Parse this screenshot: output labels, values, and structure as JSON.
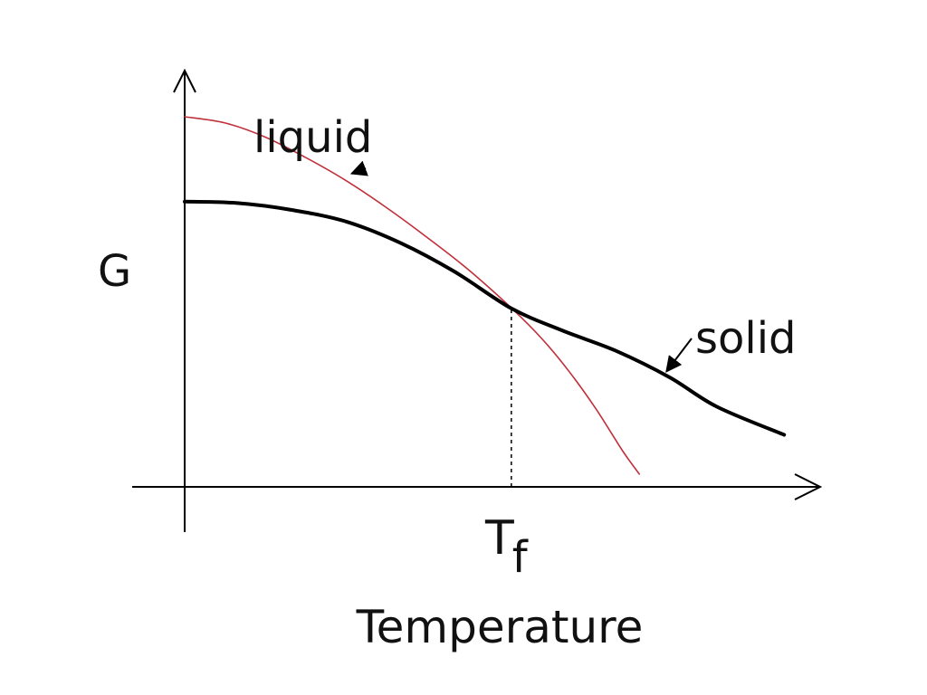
{
  "chart_data": {
    "type": "line",
    "title": "",
    "xlabel": "Temperature",
    "ylabel": "G",
    "xlim": [
      0,
      1
    ],
    "ylim": [
      0,
      1
    ],
    "grid": false,
    "legend": "none",
    "x_ticks": [
      {
        "label_main": "T",
        "label_sub": "f",
        "x": 0.485
      }
    ],
    "series": [
      {
        "name": "liquid",
        "color": "#c0303a",
        "x": [
          0.0,
          0.06,
          0.12,
          0.18,
          0.24,
          0.3,
          0.36,
          0.42,
          0.485,
          0.53,
          0.57,
          0.61,
          0.65,
          0.675
        ],
        "y": [
          0.96,
          0.944,
          0.907,
          0.854,
          0.794,
          0.724,
          0.647,
          0.565,
          0.464,
          0.385,
          0.301,
          0.204,
          0.094,
          0.033
        ]
      },
      {
        "name": "solid",
        "color": "#000000",
        "x": [
          0.0,
          0.08,
          0.16,
          0.24,
          0.32,
          0.4,
          0.485,
          0.56,
          0.64,
          0.72,
          0.79,
          0.89
        ],
        "y": [
          0.74,
          0.736,
          0.718,
          0.688,
          0.633,
          0.559,
          0.463,
          0.406,
          0.353,
          0.284,
          0.208,
          0.135
        ]
      }
    ],
    "annotations": [
      {
        "text": "liquid",
        "series": "liquid",
        "points_to_x": 0.24,
        "points_to_y": 0.794
      },
      {
        "text": "solid",
        "series": "solid",
        "points_to_x": 0.71,
        "points_to_y": 0.29
      }
    ],
    "reference_lines": [
      {
        "type": "vertical-dashed",
        "x": 0.485,
        "from_y": 0.0,
        "to_y": 0.463
      }
    ]
  }
}
